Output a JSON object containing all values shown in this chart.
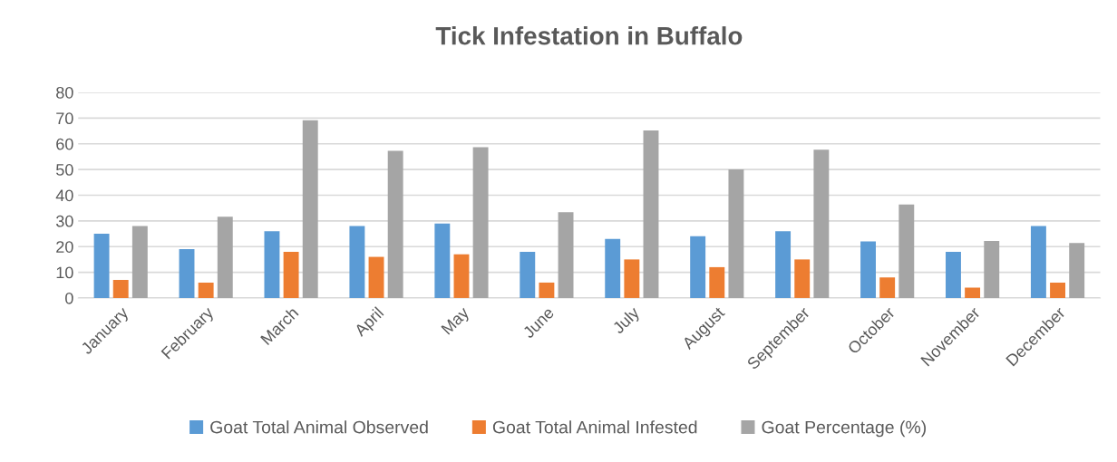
{
  "chart_data": {
    "type": "bar",
    "title": "Tick Infestation in Buffalo",
    "categories": [
      "January",
      "February",
      "March",
      "April",
      "May",
      "June",
      "July",
      "August",
      "September",
      "October",
      "November",
      "December"
    ],
    "series": [
      {
        "name": "Goat Total Animal Observed",
        "color": "#5b9bd5",
        "values": [
          25,
          19,
          26,
          28,
          29,
          18,
          23,
          24,
          26,
          22,
          18,
          28
        ]
      },
      {
        "name": "Goat Total Animal Infested",
        "color": "#ed7d31",
        "values": [
          7,
          6,
          18,
          16,
          17,
          6,
          15,
          12,
          15,
          8,
          4,
          6
        ]
      },
      {
        "name": "Goat Percentage (%)",
        "color": "#a5a5a5",
        "values": [
          28,
          31.6,
          69.2,
          57.3,
          58.7,
          33.4,
          65.2,
          50,
          57.7,
          36.4,
          22.2,
          21.4
        ]
      }
    ],
    "ylim": [
      0,
      80
    ],
    "yticks": [
      0,
      10,
      20,
      30,
      40,
      50,
      60,
      70,
      80
    ],
    "grid": "y",
    "legend": "bottom"
  }
}
